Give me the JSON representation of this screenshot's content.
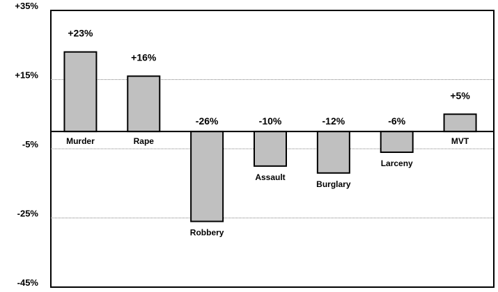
{
  "chart_data": {
    "type": "bar",
    "title": "",
    "xlabel": "",
    "ylabel": "",
    "categories": [
      "Murder",
      "Rape",
      "Robbery",
      "Assault",
      "Burglary",
      "Larceny",
      "MVT"
    ],
    "values": [
      23,
      16,
      -26,
      -10,
      -12,
      -6,
      5
    ],
    "data_labels": [
      "+23%",
      "+16%",
      "-26%",
      "-10%",
      "-12%",
      "-6%",
      "+5%"
    ],
    "ylim": [
      -45,
      35
    ],
    "yticks": [
      35,
      15,
      -5,
      -25,
      -45
    ],
    "ytick_labels": [
      "+35%",
      "+15%",
      "-5%",
      "-25%",
      "-45%"
    ],
    "grid": true,
    "legend": false,
    "colors": {
      "bar_fill": "#c0c0c0",
      "bar_stroke": "#000000",
      "grid": "#808080",
      "axis": "#000000",
      "background": "#ffffff"
    }
  }
}
